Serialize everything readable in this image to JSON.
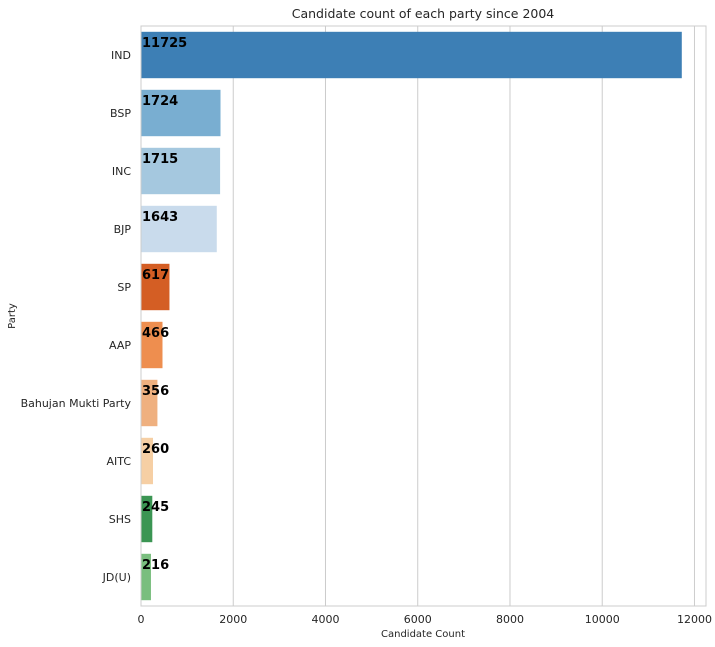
{
  "chart_data": {
    "type": "bar",
    "orientation": "horizontal",
    "title": "Candidate count of each party since 2004",
    "xlabel": "Candidate Count",
    "ylabel": "Party",
    "xlim": [
      0,
      12250
    ],
    "xticks": [
      0,
      2000,
      4000,
      6000,
      8000,
      10000,
      12000
    ],
    "grid": true,
    "categories": [
      "IND",
      "BSP",
      "INC",
      "BJP",
      "SP",
      "AAP",
      "Bahujan Mukti Party",
      "AITC",
      "SHS",
      "JD(U)"
    ],
    "values": [
      11725,
      1724,
      1715,
      1643,
      617,
      466,
      356,
      260,
      245,
      216
    ],
    "colors": [
      "#3d7fb5",
      "#79aed1",
      "#a5c8df",
      "#c9dbec",
      "#d45e24",
      "#ee8e4f",
      "#efb07f",
      "#f6cfa4",
      "#3b9553",
      "#79be7e"
    ]
  }
}
